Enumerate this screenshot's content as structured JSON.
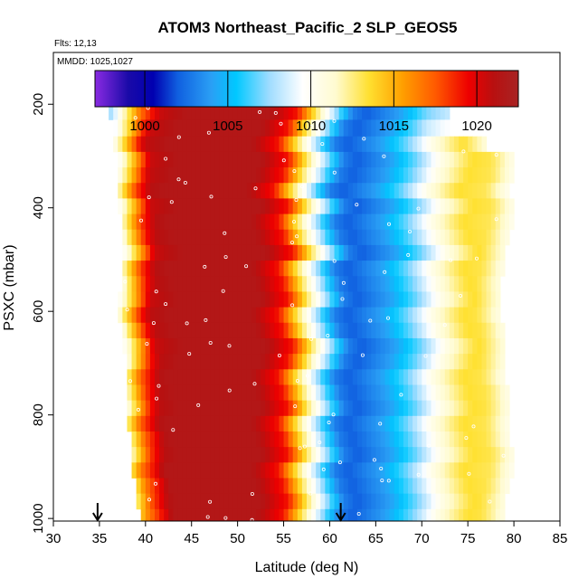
{
  "chart_data": {
    "type": "heatmap",
    "title": "ATOM3 Northeast_Pacific_2 SLP_GEOS5",
    "subtitle_flts": "Flts: 12,13",
    "subtitle_mmdd": "MMDD: 1025,1027",
    "xlabel": "Latitude (deg N)",
    "ylabel": "PSXC (mbar)",
    "xlim": [
      30,
      85
    ],
    "ylim": [
      1005,
      100
    ],
    "x_ticks": [
      "30",
      "35",
      "40",
      "45",
      "50",
      "55",
      "60",
      "65",
      "70",
      "75",
      "80",
      "85"
    ],
    "y_ticks": [
      "200",
      "400",
      "600",
      "800",
      "1000"
    ],
    "colorbar": {
      "range": [
        997,
        1022.5
      ],
      "ticks": [
        "1000",
        "1005",
        "1010",
        "1015",
        "1020"
      ],
      "stops": [
        {
          "value": 997,
          "color": "#8a2be2"
        },
        {
          "value": 999,
          "color": "#1a0aa8"
        },
        {
          "value": 1000.5,
          "color": "#0000b0"
        },
        {
          "value": 1002,
          "color": "#1060e0"
        },
        {
          "value": 1004,
          "color": "#2a9ff5"
        },
        {
          "value": 1005.5,
          "color": "#00c8ff"
        },
        {
          "value": 1007.5,
          "color": "#9fdcff"
        },
        {
          "value": 1009.5,
          "color": "#ffffff"
        },
        {
          "value": 1011.5,
          "color": "#fffbd0"
        },
        {
          "value": 1013.5,
          "color": "#ffe030"
        },
        {
          "value": 1015.5,
          "color": "#ffa000"
        },
        {
          "value": 1017.5,
          "color": "#ff5a00"
        },
        {
          "value": 1019.5,
          "color": "#ee0000"
        },
        {
          "value": 1021,
          "color": "#b81010"
        },
        {
          "value": 1022.5,
          "color": "#a82424"
        }
      ]
    },
    "profile_nodes": [
      {
        "lat": 35,
        "slp": 1013
      },
      {
        "lat": 38,
        "slp": 1017
      },
      {
        "lat": 40,
        "slp": 1020.5
      },
      {
        "lat": 43,
        "slp": 1021.5
      },
      {
        "lat": 52,
        "slp": 1021.5
      },
      {
        "lat": 55,
        "slp": 1019
      },
      {
        "lat": 57,
        "slp": 1013
      },
      {
        "lat": 59,
        "slp": 1008
      },
      {
        "lat": 61,
        "slp": 1003
      },
      {
        "lat": 62.5,
        "slp": 1002
      },
      {
        "lat": 66,
        "slp": 1004
      },
      {
        "lat": 69,
        "slp": 1007
      },
      {
        "lat": 72,
        "slp": 1011
      },
      {
        "lat": 75,
        "slp": 1013.5
      },
      {
        "lat": 78,
        "slp": 1013
      },
      {
        "lat": 81,
        "slp": 1012
      }
    ],
    "pressure_bands": [
      {
        "p_top": 170,
        "p_bot": 200,
        "lat_min": 35.5,
        "lat_max": 67.5,
        "kind": "top"
      },
      {
        "p_top": 200,
        "p_bot": 230,
        "lat_min": 36,
        "lat_max": 73,
        "shift": 1.5
      },
      {
        "p_top": 230,
        "p_bot": 262,
        "lat_min": 36.5,
        "lat_max": 73,
        "shift": 0.5
      },
      {
        "p_top": 262,
        "p_bot": 292,
        "lat_min": 36.5,
        "lat_max": 77,
        "shift": -0.5
      },
      {
        "p_top": 292,
        "p_bot": 322,
        "lat_min": 37,
        "lat_max": 80,
        "shift": 0.5
      },
      {
        "p_top": 322,
        "p_bot": 352,
        "lat_min": 37,
        "lat_max": 80,
        "shift": 0
      },
      {
        "p_top": 352,
        "p_bot": 382,
        "lat_min": 37,
        "lat_max": 79.5,
        "shift": -1
      },
      {
        "p_top": 382,
        "p_bot": 412,
        "lat_min": 37,
        "lat_max": 80,
        "shift": 0.5
      },
      {
        "p_top": 412,
        "p_bot": 442,
        "lat_min": 37.5,
        "lat_max": 80,
        "shift": -0.5
      },
      {
        "p_top": 442,
        "p_bot": 472,
        "lat_min": 37.5,
        "lat_max": 79.5,
        "shift": 0
      },
      {
        "p_top": 472,
        "p_bot": 502,
        "lat_min": 37.5,
        "lat_max": 79,
        "shift": 1
      },
      {
        "p_top": 502,
        "p_bot": 532,
        "lat_min": 37.5,
        "lat_max": 79,
        "shift": -0.5
      },
      {
        "p_top": 532,
        "p_bot": 562,
        "lat_min": 37.5,
        "lat_max": 78.5,
        "shift": 0
      },
      {
        "p_top": 562,
        "p_bot": 592,
        "lat_min": 37,
        "lat_max": 78.5,
        "shift": 0.5
      },
      {
        "p_top": 592,
        "p_bot": 622,
        "lat_min": 37,
        "lat_max": 78.5,
        "shift": -0.5
      },
      {
        "p_top": 622,
        "p_bot": 652,
        "lat_min": 37.5,
        "lat_max": 79,
        "shift": 0
      },
      {
        "p_top": 652,
        "p_bot": 682,
        "lat_min": 37.5,
        "lat_max": 79,
        "shift": 1
      },
      {
        "p_top": 682,
        "p_bot": 712,
        "lat_min": 38,
        "lat_max": 79,
        "shift": 0.5
      },
      {
        "p_top": 712,
        "p_bot": 742,
        "lat_min": 38,
        "lat_max": 79,
        "shift": -0.5
      },
      {
        "p_top": 742,
        "p_bot": 772,
        "lat_min": 38,
        "lat_max": 79.5,
        "shift": 0
      },
      {
        "p_top": 772,
        "p_bot": 802,
        "lat_min": 38,
        "lat_max": 79.5,
        "shift": 0.5
      },
      {
        "p_top": 802,
        "p_bot": 832,
        "lat_min": 38,
        "lat_max": 79.5,
        "shift": -0.5
      },
      {
        "p_top": 832,
        "p_bot": 862,
        "lat_min": 38.5,
        "lat_max": 79.5,
        "shift": 0
      },
      {
        "p_top": 862,
        "p_bot": 892,
        "lat_min": 38.5,
        "lat_max": 80,
        "shift": 0.5
      },
      {
        "p_top": 892,
        "p_bot": 922,
        "lat_min": 38.5,
        "lat_max": 80,
        "shift": -0.5
      },
      {
        "p_top": 922,
        "p_bot": 952,
        "lat_min": 39,
        "lat_max": 79.5,
        "shift": 0
      },
      {
        "p_top": 952,
        "p_bot": 982,
        "lat_min": 39,
        "lat_max": 79,
        "shift": 0.5
      },
      {
        "p_top": 982,
        "p_bot": 1005,
        "lat_min": 39.5,
        "lat_max": 79,
        "shift": 0
      }
    ],
    "arrows_lat": [
      34.8,
      61.2
    ]
  }
}
